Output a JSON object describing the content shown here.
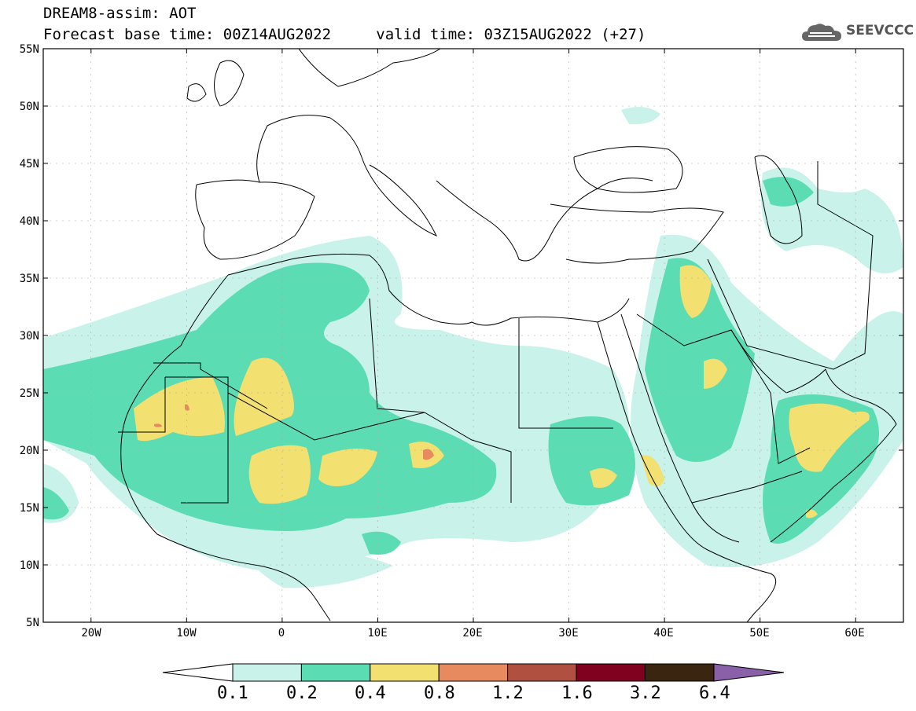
{
  "header": {
    "title": "DREAM8-assim: AOT",
    "base_time": "Forecast base time: 00Z14AUG2022",
    "valid_time": "valid time: 03Z15AUG2022 (+27)"
  },
  "logo": {
    "text": "SEEVCCC",
    "icon": "cloud-icon"
  },
  "map": {
    "lat_labels": [
      "55N",
      "50N",
      "45N",
      "40N",
      "35N",
      "30N",
      "25N",
      "20N",
      "15N",
      "10N",
      "5N"
    ],
    "lon_labels": [
      "20W",
      "10W",
      "0",
      "10E",
      "20E",
      "30E",
      "40E",
      "50E",
      "60E"
    ],
    "lat_range": [
      5,
      55
    ],
    "lon_range": [
      -25,
      65
    ]
  },
  "colorbar": {
    "labels": [
      "0.1",
      "0.2",
      "0.4",
      "0.8",
      "1.2",
      "1.6",
      "3.2",
      "6.4"
    ],
    "colors": [
      "#c8f2ea",
      "#5bdcb3",
      "#f2e070",
      "#e88a60",
      "#b05040",
      "#800020",
      "#3a2510",
      "#8a60a8"
    ]
  }
}
